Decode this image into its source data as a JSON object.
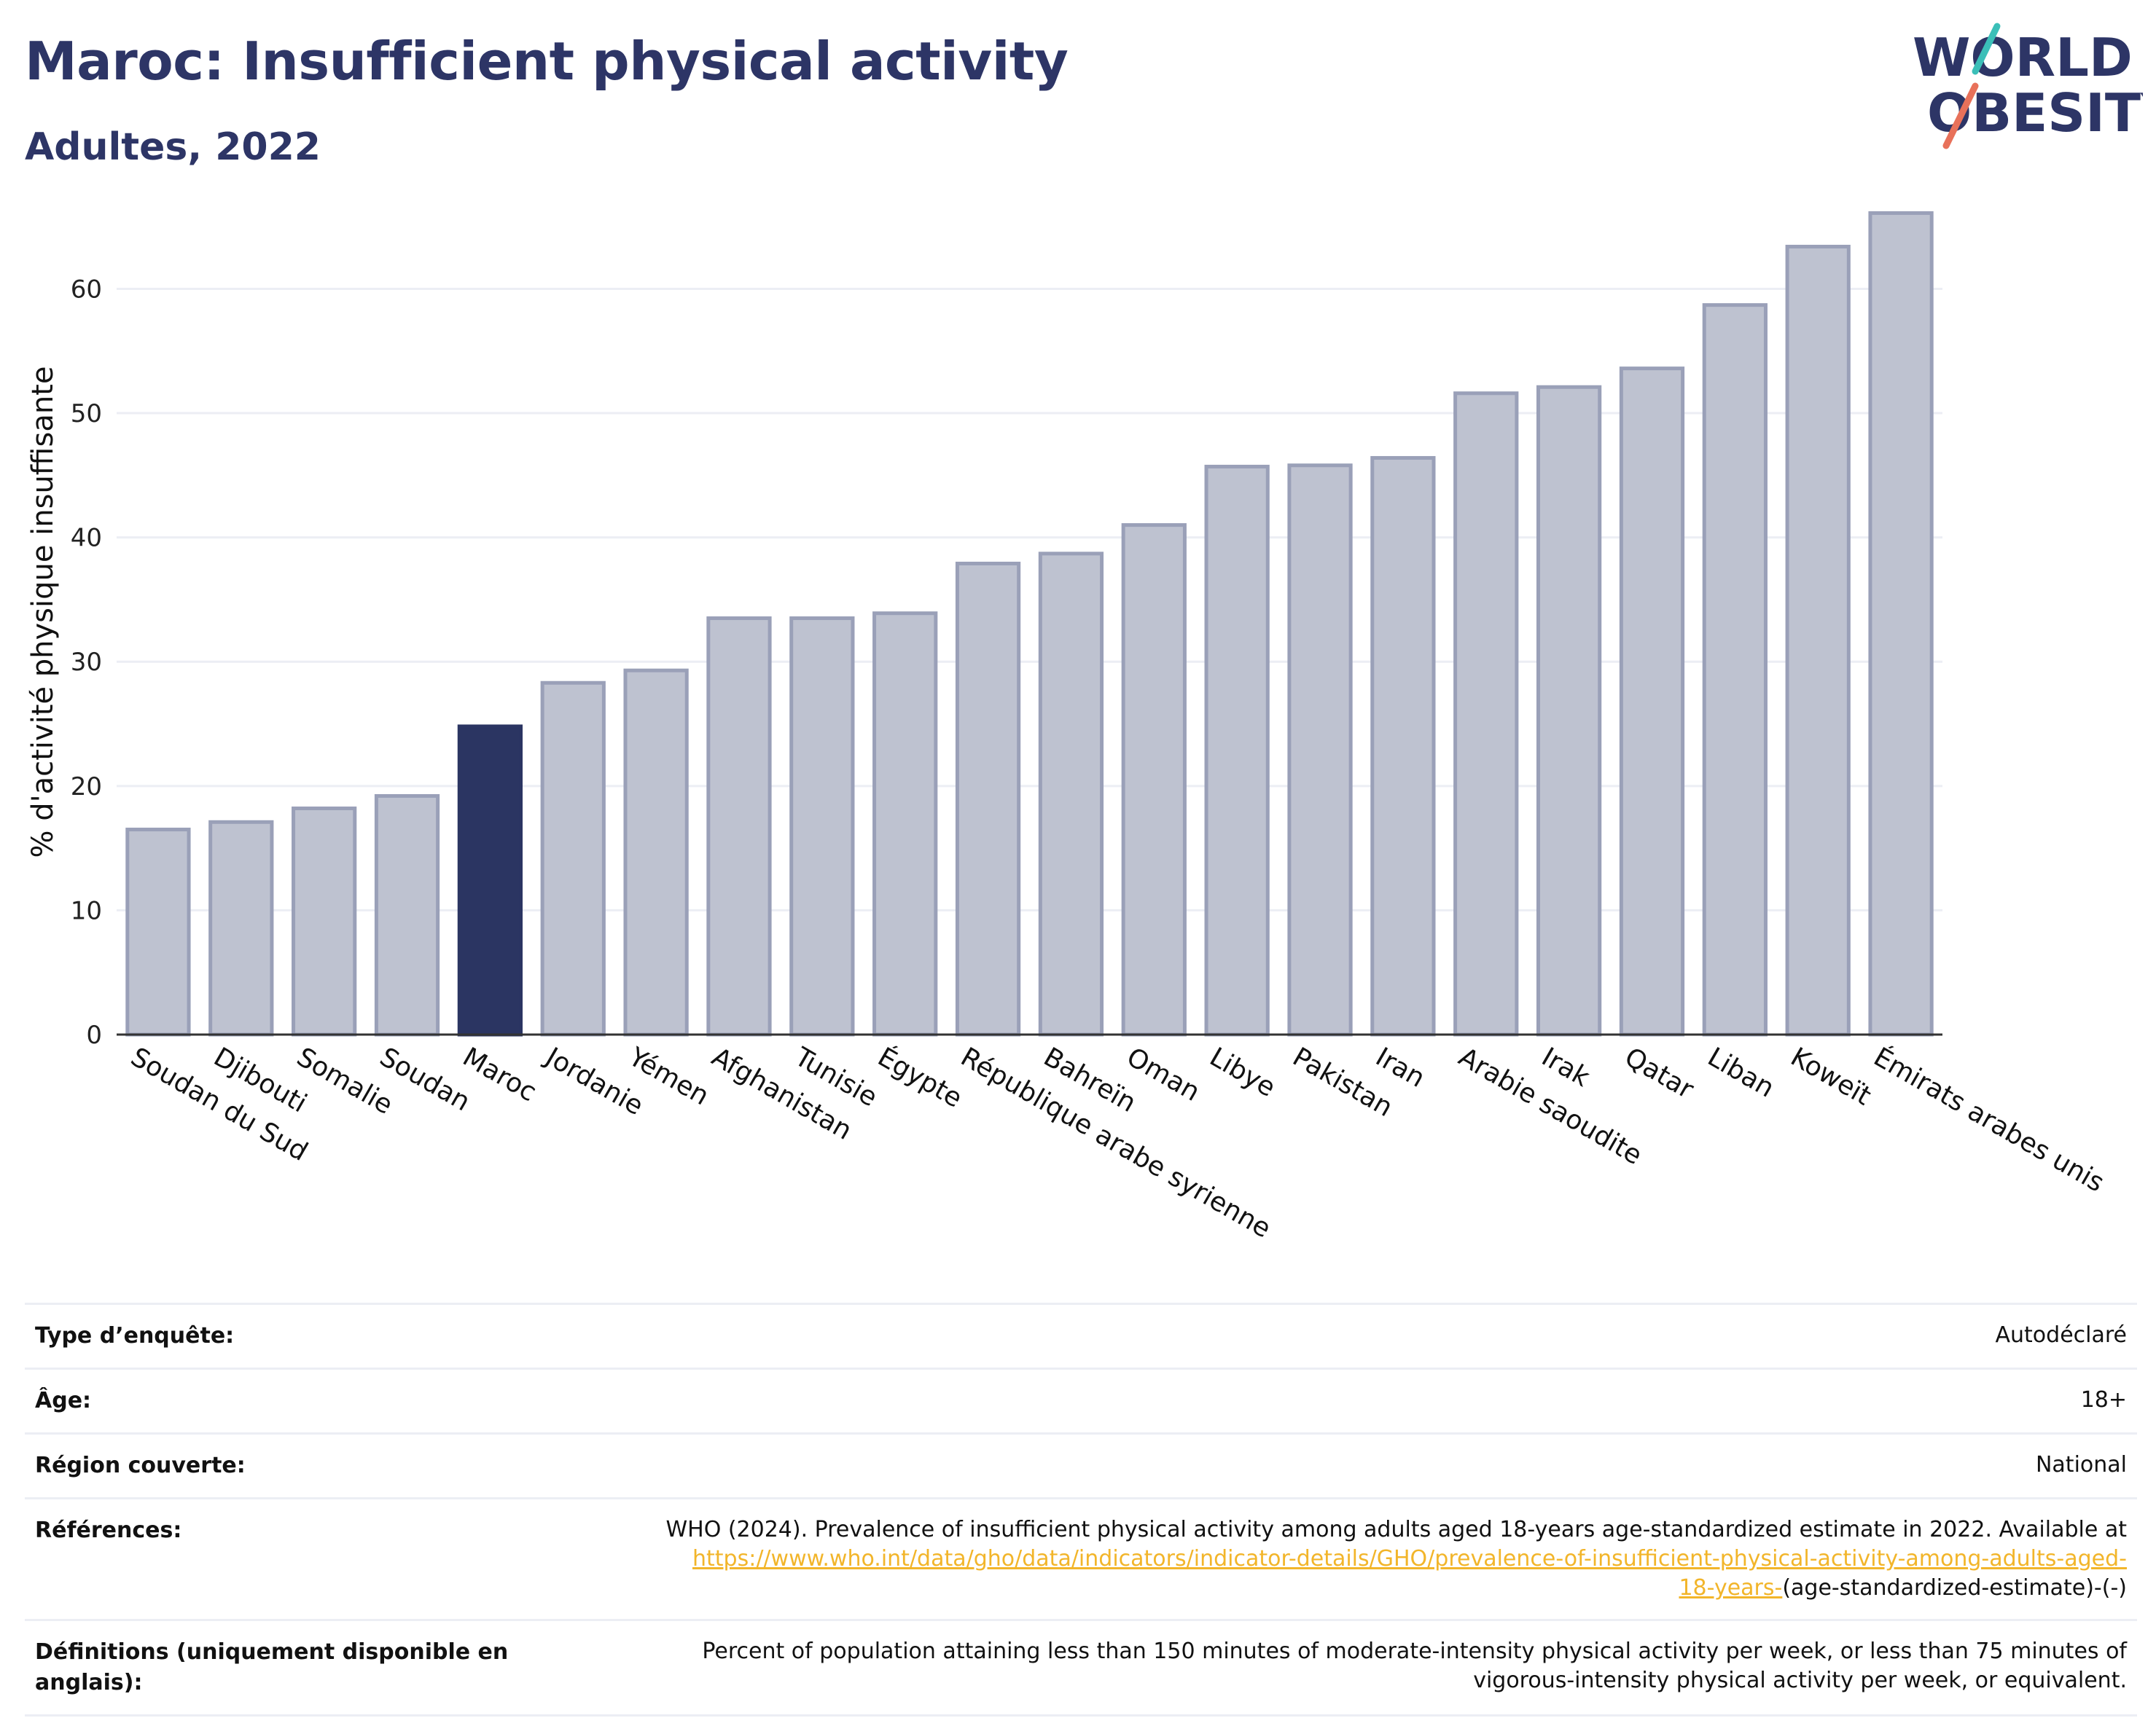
{
  "header": {
    "title": "Maroc: Insufficient physical activity",
    "subtitle": "Adultes, 2022"
  },
  "logo": {
    "line1": "WORLD",
    "line2": "OBESITY",
    "accent_colors": [
      "#3bbfb8",
      "#e8715a"
    ]
  },
  "colors": {
    "highlight": "#2b3562",
    "bar_fill": "#bec2d0",
    "bar_stroke": "#9aa0b8",
    "grid": "#eceef4",
    "link": "#f2b52a"
  },
  "chart_data": {
    "type": "bar",
    "ylabel": "% d'activité physique insuffisante",
    "ylim": [
      0,
      68
    ],
    "yticks": [
      0,
      10,
      20,
      30,
      40,
      50,
      60
    ],
    "highlight_category": "Maroc",
    "grid": true,
    "categories": [
      "Soudan du Sud",
      "Djibouti",
      "Somalie",
      "Soudan",
      "Maroc",
      "Jordanie",
      "Yémen",
      "Afghanistan",
      "Tunisie",
      "Égypte",
      "République arabe syrienne",
      "Bahreïn",
      "Oman",
      "Libye",
      "Pakistan",
      "Iran",
      "Arabie saoudite",
      "Irak",
      "Qatar",
      "Liban",
      "Koweït",
      "Émirats arabes unis"
    ],
    "values": [
      16.5,
      17.1,
      18.2,
      19.2,
      24.8,
      28.3,
      29.3,
      33.5,
      33.5,
      33.9,
      37.9,
      38.7,
      41.0,
      45.7,
      45.8,
      46.4,
      51.6,
      52.1,
      53.6,
      58.7,
      63.4,
      66.1
    ]
  },
  "info": {
    "survey_type_label": "Type d’enquête:",
    "survey_type_value": "Autodéclaré",
    "age_label": "Âge:",
    "age_value": "18+",
    "region_label": "Région couverte:",
    "region_value": "National",
    "references_label": "Références:",
    "references_text": "WHO (2024). Prevalence of insufficient physical activity among adults aged 18-years age-standardized estimate in 2022. Available at",
    "references_link_1": "https://www.who.int/data/gho/data/indicators/indicator-details/GHO/prevalence-of-insufficient-physical-activity-among-adults-aged-",
    "references_link_2": "18-years-",
    "references_tail": "(age-standardized-estimate)-(-)",
    "definitions_label": "Définitions (uniquement disponible en anglais):",
    "definitions_line_1": "Percent of population attaining less than 150 minutes of moderate-intensity physical activity per week, or less than 75 minutes of",
    "definitions_line_2": "vigorous-intensity physical activity per week, or equivalent."
  }
}
